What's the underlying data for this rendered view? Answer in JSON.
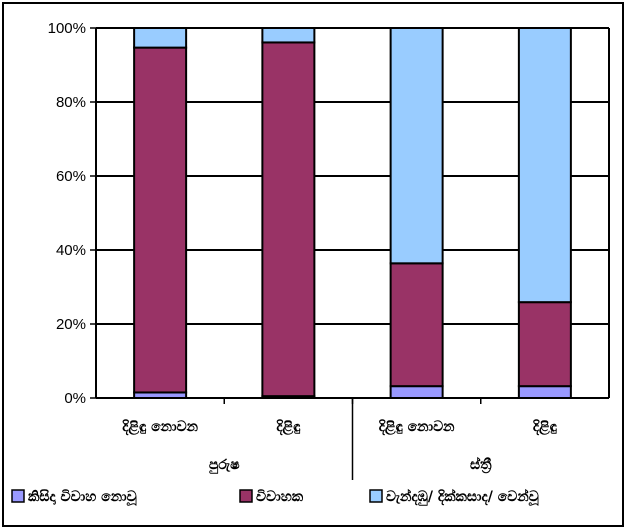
{
  "chart_data": {
    "type": "bar",
    "stacked": true,
    "percent_stacked": true,
    "categories": [
      "දිළිඳු නොවන",
      "දිළිඳු",
      "දිළිඳු නොවන",
      "දිළිඳු"
    ],
    "groups": [
      {
        "label": "පුරුෂ",
        "categories": [
          0,
          1
        ]
      },
      {
        "label": "ස්ත්‍රී",
        "categories": [
          2,
          3
        ]
      }
    ],
    "series": [
      {
        "name": "කිසිදා විවාහ නොවූ",
        "color": "#9999ff",
        "values": [
          1.5,
          0.5,
          3.2,
          3.2
        ]
      },
      {
        "name": "විවාහක",
        "color": "#993366",
        "values": [
          93.2,
          95.6,
          33.2,
          22.7
        ]
      },
      {
        "name": "වැන්දඹු/ දික්කසාද/ වෙන්වූ",
        "color": "#99ccff",
        "values": [
          5.3,
          3.9,
          63.6,
          74.1
        ]
      }
    ],
    "yticks": [
      "0%",
      "20%",
      "40%",
      "60%",
      "80%",
      "100%"
    ],
    "ylim": [
      0,
      100
    ],
    "grid": true,
    "legend": "bottom"
  }
}
